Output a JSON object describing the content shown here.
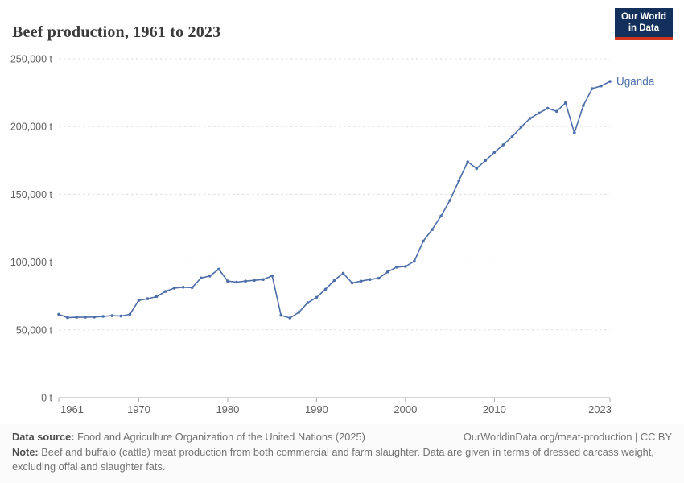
{
  "header": {
    "title": "Beef production, 1961 to 2023",
    "logo": {
      "line1": "Our World",
      "line2": "in Data"
    }
  },
  "colors": {
    "series_blue": "#4c6ea9",
    "logo_navy": "#12305b",
    "logo_red": "#d2351f",
    "gridline": "#dcdcdc",
    "axis": "#a8a8a8",
    "axis_text": "#606060"
  },
  "chart_data": {
    "type": "line",
    "title": "Beef production, 1961 to 2023",
    "unit": "t",
    "grid": "dashed horizontal gridlines",
    "legend_position": "end-of-line label",
    "xlim": [
      1961,
      2023
    ],
    "ylim": [
      0,
      250000
    ],
    "xticks": [
      1961,
      1970,
      1980,
      1990,
      2000,
      2010,
      2023
    ],
    "yticks": [
      {
        "value": 0,
        "label": "0 t"
      },
      {
        "value": 50000,
        "label": "50,000 t"
      },
      {
        "value": 100000,
        "label": "100,000 t"
      },
      {
        "value": 150000,
        "label": "150,000 t"
      },
      {
        "value": 200000,
        "label": "200,000 t"
      },
      {
        "value": 250000,
        "label": "250,000 t"
      }
    ],
    "x": [
      1961,
      1962,
      1963,
      1964,
      1965,
      1966,
      1967,
      1968,
      1969,
      1970,
      1971,
      1972,
      1973,
      1974,
      1975,
      1976,
      1977,
      1978,
      1979,
      1980,
      1981,
      1982,
      1983,
      1984,
      1985,
      1986,
      1987,
      1988,
      1989,
      1990,
      1991,
      1992,
      1993,
      1994,
      1995,
      1996,
      1997,
      1998,
      1999,
      2000,
      2001,
      2002,
      2003,
      2004,
      2005,
      2006,
      2007,
      2008,
      2009,
      2010,
      2011,
      2012,
      2013,
      2014,
      2015,
      2016,
      2017,
      2018,
      2019,
      2020,
      2021,
      2022,
      2023
    ],
    "series": [
      {
        "name": "Uganda",
        "color": "#4c6ea9",
        "values": [
          61500,
          59000,
          59300,
          59400,
          59500,
          60000,
          60500,
          60200,
          61500,
          71800,
          73000,
          74500,
          78300,
          80800,
          81500,
          81200,
          88300,
          89800,
          94800,
          86000,
          85200,
          86000,
          86600,
          87200,
          89900,
          60800,
          58800,
          63000,
          70000,
          74000,
          80000,
          86500,
          91800,
          84600,
          86000,
          87200,
          88100,
          92800,
          96300,
          96800,
          100700,
          115500,
          124000,
          134000,
          145500,
          160000,
          174000,
          169000,
          175000,
          181000,
          186500,
          192500,
          199500,
          206000,
          210000,
          213500,
          211200,
          217500,
          195300,
          215500,
          228000,
          230000,
          233300
        ]
      }
    ]
  },
  "footer": {
    "data_source_label": "Data source:",
    "data_source_text": " Food and Agriculture Organization of the United Nations (2025)",
    "link": "OurWorldinData.org/meat-production | CC BY",
    "note_label": "Note:",
    "note_text": " Beef and buffalo (cattle) meat production from both commercial and farm slaughter. Data are given in terms of dressed carcass weight, excluding offal and slaughter fats."
  }
}
